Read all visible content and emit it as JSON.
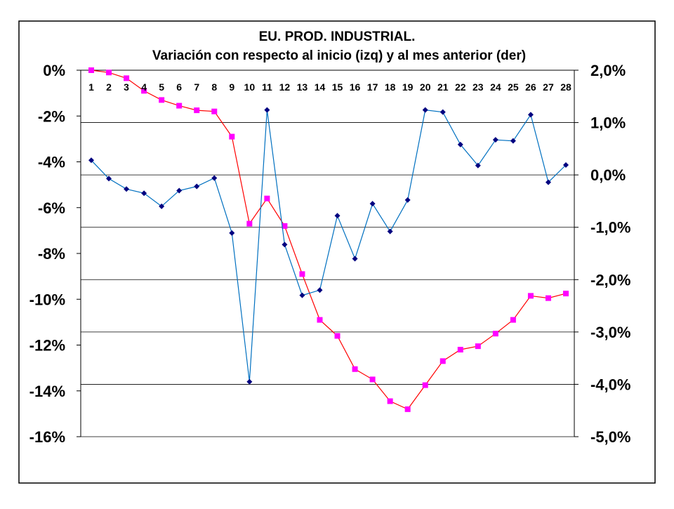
{
  "chart_data": {
    "type": "line",
    "title": "EU. PROD. INDUSTRIAL.",
    "subtitle": "Variación con respecto al inicio (izq) y al mes anterior (der)",
    "categories": [
      "1",
      "2",
      "3",
      "4",
      "5",
      "6",
      "7",
      "8",
      "9",
      "10",
      "11",
      "12",
      "13",
      "14",
      "15",
      "16",
      "17",
      "18",
      "19",
      "20",
      "21",
      "22",
      "23",
      "24",
      "25",
      "26",
      "27",
      "28"
    ],
    "y_left": {
      "min": -16,
      "max": 0,
      "step": 2,
      "ticks": [
        "0%",
        "-2%",
        "-4%",
        "-6%",
        "-8%",
        "-10%",
        "-12%",
        "-14%",
        "-16%"
      ]
    },
    "y_right": {
      "min": -5,
      "max": 2,
      "step": 1,
      "ticks": [
        "2,0%",
        "1,0%",
        "0,0%",
        "-1,0%",
        "-2,0%",
        "-3,0%",
        "-4,0%",
        "-5,0%"
      ]
    },
    "gridlines": "right-axis-major",
    "series": [
      {
        "axis": "left",
        "color": "#FF00FF",
        "line_color": "#FF0000",
        "marker": "square",
        "values": [
          0.0,
          -0.1,
          -0.35,
          -0.9,
          -1.3,
          -1.55,
          -1.75,
          -1.8,
          -2.9,
          -6.7,
          -5.6,
          -6.8,
          -8.9,
          -10.9,
          -11.6,
          -13.05,
          -13.5,
          -14.45,
          -14.8,
          -13.75,
          -12.7,
          -12.2,
          -12.05,
          -11.5,
          -10.9,
          -9.85,
          -9.95,
          -9.75
        ]
      },
      {
        "axis": "right",
        "color": "#000080",
        "line_color": "#0070C0",
        "marker": "diamond",
        "values": [
          0.28,
          -0.07,
          -0.27,
          -0.35,
          -0.6,
          -0.3,
          -0.22,
          -0.06,
          -1.11,
          -3.95,
          1.24,
          -1.33,
          -2.3,
          -2.2,
          -0.78,
          -1.6,
          -0.55,
          -1.08,
          -0.48,
          1.24,
          1.2,
          0.58,
          0.18,
          0.67,
          0.65,
          1.15,
          -0.14,
          0.19
        ]
      }
    ]
  }
}
